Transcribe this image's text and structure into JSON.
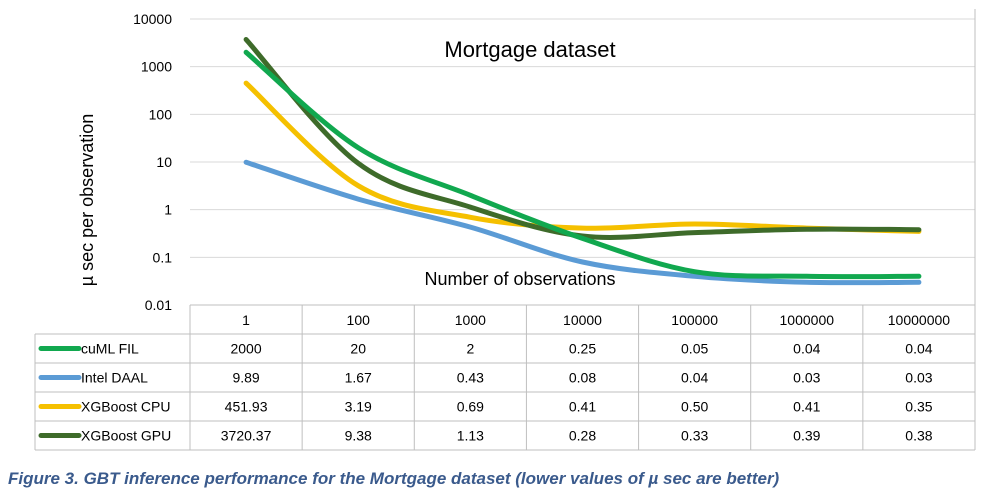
{
  "chart_data": {
    "type": "line",
    "title": "Mortgage dataset",
    "xlabel": "Number of observations",
    "ylabel": "µ sec per observation",
    "y_scale": "log",
    "ylim": [
      0.01,
      10000
    ],
    "y_ticks": [
      "10000",
      "1000",
      "100",
      "10",
      "1",
      "0.1",
      "0.01"
    ],
    "categories": [
      "1",
      "100",
      "1000",
      "10000",
      "100000",
      "1000000",
      "10000000"
    ],
    "grid": true,
    "legend": "data table below chart",
    "series": [
      {
        "name": "cuML FIL",
        "color": "#11a84f",
        "labels": [
          "2000",
          "20",
          "2",
          "0.25",
          "0.05",
          "0.04",
          "0.04"
        ],
        "values": [
          2000,
          20,
          2,
          0.25,
          0.05,
          0.04,
          0.04
        ]
      },
      {
        "name": "Intel DAAL",
        "color": "#5b9bd5",
        "labels": [
          "9.89",
          "1.67",
          "0.43",
          "0.08",
          "0.04",
          "0.03",
          "0.03"
        ],
        "values": [
          9.89,
          1.67,
          0.43,
          0.08,
          0.04,
          0.03,
          0.03
        ]
      },
      {
        "name": "XGBoost CPU",
        "color": "#f5c000",
        "labels": [
          "451.93",
          "3.19",
          "0.69",
          "0.41",
          "0.50",
          "0.41",
          "0.35"
        ],
        "values": [
          451.93,
          3.19,
          0.69,
          0.41,
          0.5,
          0.41,
          0.35
        ]
      },
      {
        "name": "XGBoost GPU",
        "color": "#3e6b2a",
        "labels": [
          "3720.37",
          "9.38",
          "1.13",
          "0.28",
          "0.33",
          "0.39",
          "0.38"
        ],
        "values": [
          3720.37,
          9.38,
          1.13,
          0.28,
          0.33,
          0.39,
          0.38
        ]
      }
    ]
  },
  "caption": "Figure 3. GBT inference performance for the Mortgage dataset (lower values of µ sec are better)"
}
